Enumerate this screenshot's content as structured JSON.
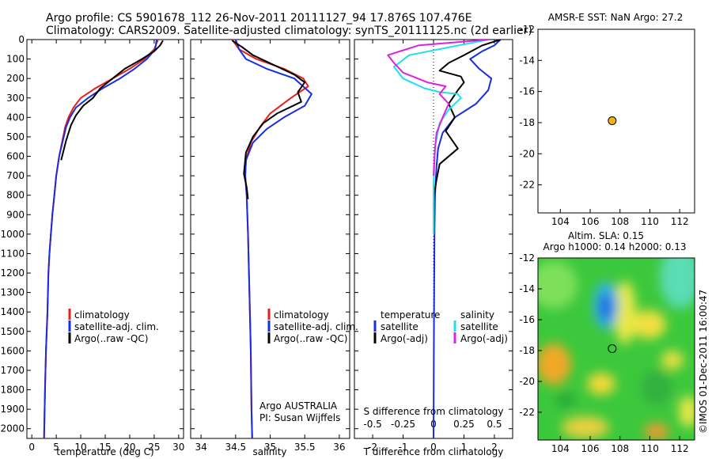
{
  "header": {
    "line1": "Argo profile: CS 5901678_112 26-Nov-2011 20111127_94 17.876S 107.476E",
    "line2": "Climatology: CARS2009. Satellite-adjusted climatology: synTS_20111125.nc (2d earlier)"
  },
  "colors": {
    "climatology": "#e8201c",
    "satellite": "#1a2ce0",
    "argo": "#000000",
    "sat_salinity": "#1ee0e8",
    "argo_salinity": "#e020e0",
    "marker": "#f0b418"
  },
  "footer": {
    "credit": "©IMOS 01-Dec-2011 16:00:47",
    "owner": "Argo AUSTRALIA",
    "pi": "PI: Susan Wijffels"
  },
  "chart_data": [
    {
      "id": "temperature",
      "type": "line",
      "xlabel": "temperature (deg C)",
      "ylabel": "",
      "xlim": [
        -1,
        31
      ],
      "ylim": [
        2050,
        0
      ],
      "xticks": [
        0,
        5,
        10,
        15,
        20,
        25,
        30
      ],
      "yticks": [
        0,
        100,
        200,
        300,
        400,
        500,
        600,
        700,
        800,
        900,
        1000,
        1100,
        1200,
        1300,
        1400,
        1500,
        1600,
        1700,
        1800,
        1900,
        2000
      ],
      "legend": [
        "climatology",
        "satellite-adj. clim.",
        "Argo(..raw -QC)"
      ],
      "series": [
        {
          "name": "climatology",
          "color": "#e8201c",
          "x": [
            25.8,
            25.0,
            23.0,
            20.0,
            16.5,
            13.0,
            10.0,
            8.5,
            7.5,
            6.8,
            5.6,
            5.0,
            4.6,
            4.2,
            3.9,
            3.6,
            3.4,
            3.2,
            2.9,
            2.7,
            2.5
          ],
          "y": [
            0,
            50,
            100,
            150,
            200,
            250,
            300,
            350,
            400,
            450,
            600,
            700,
            800,
            900,
            1000,
            1100,
            1200,
            1400,
            1600,
            1800,
            2050
          ]
        },
        {
          "name": "satellite-adj. clim.",
          "color": "#1a2ce0",
          "x": [
            25.5,
            25.2,
            23.5,
            21.0,
            18.0,
            14.5,
            11.5,
            9.0,
            7.8,
            7.0,
            5.6,
            5.0,
            4.6,
            4.2,
            3.9,
            3.6,
            3.4,
            3.2,
            2.9,
            2.7,
            2.5
          ],
          "y": [
            0,
            50,
            100,
            150,
            200,
            250,
            300,
            350,
            400,
            450,
            600,
            700,
            800,
            900,
            1000,
            1100,
            1200,
            1400,
            1600,
            1800,
            2050
          ]
        },
        {
          "name": "Argo(..raw -QC)",
          "color": "#000000",
          "x": [
            26.8,
            26.2,
            25.0,
            22.5,
            19.0,
            16.5,
            14.0,
            12.5,
            10.5,
            9.0,
            8.0,
            7.0,
            6.0
          ],
          "y": [
            5,
            30,
            60,
            100,
            150,
            200,
            250,
            300,
            340,
            390,
            440,
            520,
            620
          ]
        }
      ]
    },
    {
      "id": "salinity",
      "type": "line",
      "xlabel": "salinity",
      "ylabel": "",
      "xlim": [
        33.85,
        36.15
      ],
      "ylim": [
        2050,
        0
      ],
      "xticks": [
        34,
        34.5,
        35,
        35.5,
        36
      ],
      "legend": [
        "climatology",
        "satellite-adj. clim.",
        "Argo(..raw -QC)"
      ],
      "series": [
        {
          "name": "climatology",
          "color": "#e8201c",
          "x": [
            34.45,
            34.55,
            34.8,
            35.2,
            35.48,
            35.55,
            35.3,
            35.0,
            34.85,
            34.72,
            34.65,
            34.64,
            34.66,
            34.68,
            34.7,
            34.72,
            34.73,
            34.74
          ],
          "y": [
            0,
            50,
            100,
            150,
            200,
            240,
            300,
            380,
            450,
            530,
            620,
            700,
            800,
            1000,
            1300,
            1600,
            1900,
            2050
          ]
        },
        {
          "name": "satellite-adj. clim.",
          "color": "#1a2ce0",
          "x": [
            34.5,
            34.55,
            34.65,
            34.95,
            35.35,
            35.6,
            35.5,
            35.2,
            34.95,
            34.75,
            34.65,
            34.64,
            34.66,
            34.68,
            34.7,
            34.72,
            34.73,
            34.74
          ],
          "y": [
            0,
            50,
            100,
            150,
            200,
            280,
            340,
            400,
            460,
            530,
            620,
            700,
            800,
            1000,
            1300,
            1600,
            1900,
            2050
          ]
        },
        {
          "name": "Argo(..raw -QC)",
          "color": "#000000",
          "x": [
            34.45,
            34.6,
            34.75,
            35.05,
            35.35,
            35.5,
            35.4,
            35.45,
            35.1,
            34.9,
            34.75,
            34.65,
            34.62,
            34.66,
            34.68
          ],
          "y": [
            5,
            40,
            80,
            130,
            180,
            220,
            270,
            320,
            380,
            430,
            500,
            580,
            690,
            760,
            820
          ]
        }
      ]
    },
    {
      "id": "difference",
      "type": "line",
      "xlabel": "T difference from climatology",
      "xlabel_top": "S difference from climatology",
      "xlim": [
        -2.6,
        2.6
      ],
      "ylim": [
        2050,
        0
      ],
      "xticks": [
        -2,
        -1,
        0,
        1,
        2
      ],
      "xticks_top_labels": [
        "-0.5",
        "-0.25",
        "0",
        "0.25",
        "0.5"
      ],
      "legend_t_header": "temperature",
      "legend_s_header": "salinity",
      "legend": [
        "satellite",
        "Argo(-adj)",
        "satellite",
        "Argo(-adj)"
      ],
      "series": [
        {
          "name": "temperature satellite",
          "color": "#1a2ce0",
          "x": [
            2.2,
            2.0,
            1.6,
            1.2,
            1.5,
            1.9,
            1.8,
            1.4,
            0.7,
            0.3,
            0.15,
            0.1,
            0.05,
            0.03,
            0.02,
            0.01,
            0.0
          ],
          "y": [
            0,
            30,
            60,
            100,
            150,
            200,
            260,
            330,
            400,
            480,
            560,
            650,
            800,
            1000,
            1300,
            1600,
            2050
          ]
        },
        {
          "name": "temperature Argo",
          "color": "#000000",
          "x": [
            2.2,
            1.6,
            1.0,
            0.5,
            0.2,
            0.9,
            1.0,
            0.8,
            0.5,
            0.7,
            0.4,
            0.8,
            0.2,
            0.1,
            0.0
          ],
          "y": [
            0,
            30,
            80,
            120,
            160,
            190,
            220,
            260,
            330,
            400,
            470,
            560,
            640,
            720,
            820
          ]
        },
        {
          "name": "salinity satellite",
          "color": "#1ee0e8",
          "x": [
            1.8,
            0.5,
            -0.8,
            -1.3,
            -1.0,
            -0.3,
            0.2,
            0.8,
            0.9,
            0.5,
            0.2,
            0.05,
            0.0,
            0.0
          ],
          "y": [
            0,
            40,
            80,
            140,
            200,
            250,
            270,
            280,
            300,
            360,
            430,
            550,
            750,
            1000
          ]
        },
        {
          "name": "salinity Argo",
          "color": "#e020e0",
          "x": [
            1.8,
            -0.5,
            -1.5,
            -1.3,
            -1.0,
            -0.2,
            0.4,
            0.2,
            0.5,
            0.3,
            0.1,
            0.05,
            0.0
          ],
          "y": [
            0,
            30,
            80,
            120,
            170,
            220,
            240,
            280,
            330,
            400,
            480,
            560,
            700
          ]
        }
      ]
    },
    {
      "id": "sst_map",
      "type": "scatter",
      "title": "AMSR-E SST: NaN Argo: 27.2",
      "xlim": [
        102.5,
        113.0
      ],
      "ylim": [
        -23.8,
        -12.0
      ],
      "xticks": [
        104,
        106,
        108,
        110,
        112
      ],
      "yticks": [
        -12,
        -14,
        -16,
        -18,
        -20,
        -22
      ],
      "points": [
        {
          "x": 107.476,
          "y": -17.876
        }
      ]
    },
    {
      "id": "sla_map",
      "type": "heatmap",
      "title_line1": "Altim. SLA: 0.15",
      "title_line2": "Argo h1000: 0.14 h2000: 0.13",
      "xlim": [
        102.5,
        113.0
      ],
      "ylim": [
        -23.8,
        -12.0
      ],
      "xticks": [
        104,
        106,
        108,
        110,
        112
      ],
      "yticks": [
        -12,
        -14,
        -16,
        -18,
        -20,
        -22
      ],
      "points": [
        {
          "x": 107.476,
          "y": -17.876
        }
      ]
    }
  ]
}
